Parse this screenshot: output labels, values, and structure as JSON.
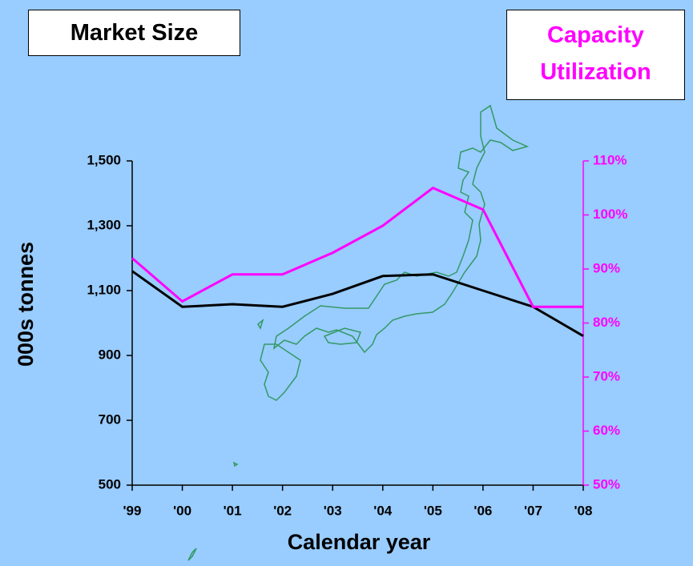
{
  "chart_data": {
    "type": "line",
    "title": "Market Size",
    "y2_title": "Capacity Utilization",
    "xlabel": "Calendar year",
    "ylabel": "000s tonnes",
    "categories": [
      "'99",
      "'00",
      "'01",
      "'02",
      "'03",
      "'04",
      "'05",
      "'06",
      "'07",
      "'08"
    ],
    "series": [
      {
        "color": "#000000",
        "values": [
          1160,
          1050,
          1058,
          1050,
          1090,
          1145,
          1150,
          1100,
          1050,
          960
        ]
      },
      {
        "color": "#ff00ff",
        "axis": "y2",
        "values": [
          92,
          84,
          89,
          89,
          93,
          98,
          105,
          101,
          83,
          83
        ]
      }
    ],
    "ylim": [
      500,
      1500
    ],
    "yticks": [
      {
        "value": 500,
        "label": "500"
      },
      {
        "value": 700,
        "label": "700"
      },
      {
        "value": 900,
        "label": "900"
      },
      {
        "value": 1100,
        "label": "1,100"
      },
      {
        "value": 1300,
        "label": "1,300"
      },
      {
        "value": 1500,
        "label": "1,500"
      }
    ],
    "y2lim": [
      50,
      110
    ],
    "y2ticks": [
      {
        "value": 50,
        "label": "50%"
      },
      {
        "value": 60,
        "label": "60%"
      },
      {
        "value": 70,
        "label": "70%"
      },
      {
        "value": 80,
        "label": "80%"
      },
      {
        "value": 90,
        "label": "90%"
      },
      {
        "value": 100,
        "label": "100%"
      },
      {
        "value": 110,
        "label": "110%"
      }
    ],
    "y2color": "#ff00ff"
  }
}
